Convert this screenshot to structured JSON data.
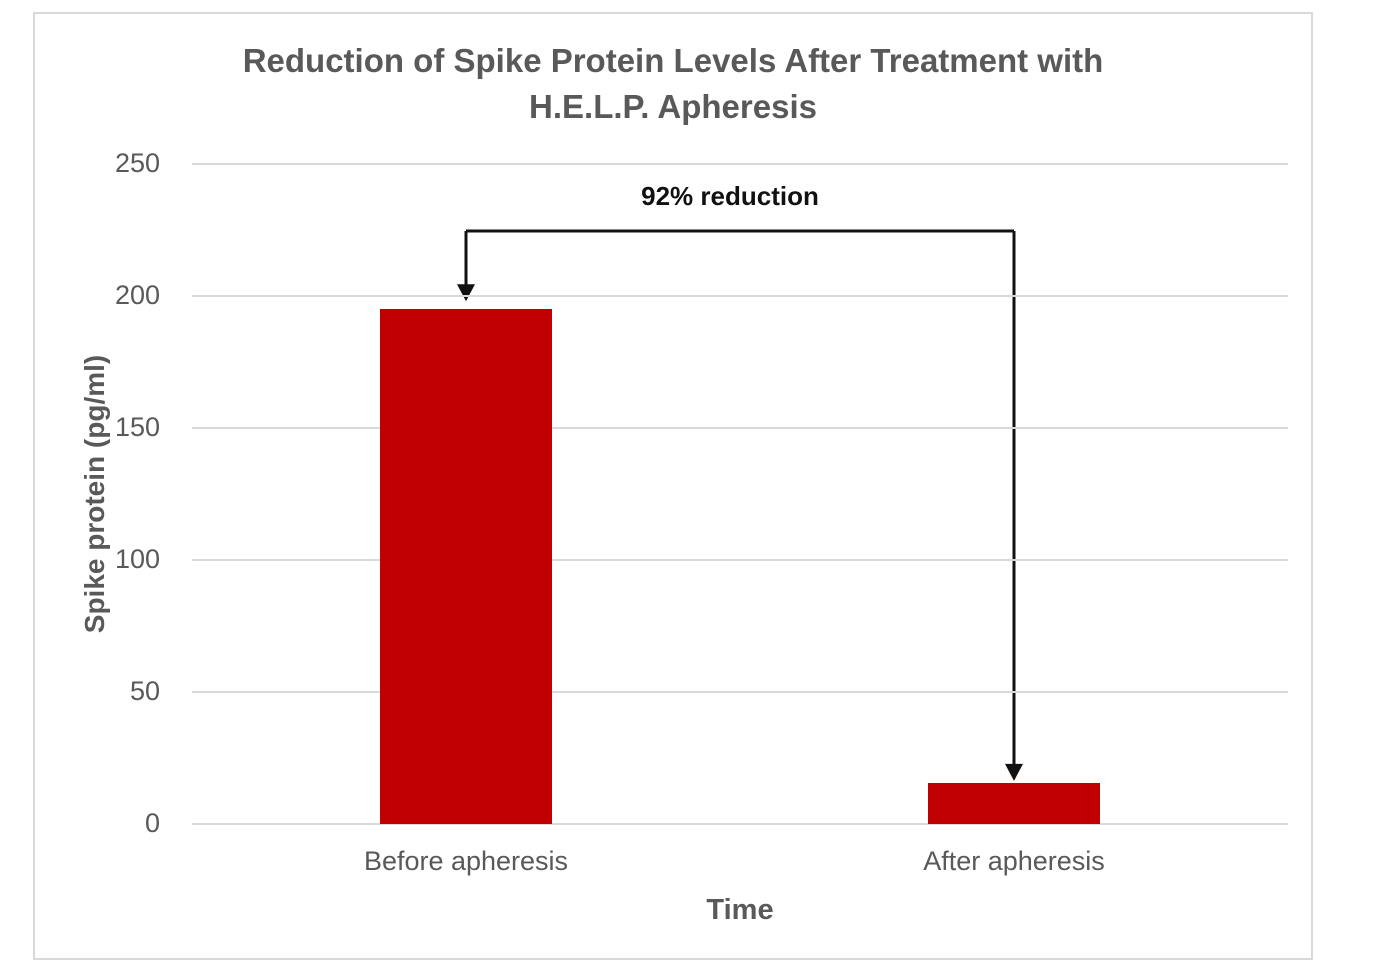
{
  "chart_data": {
    "type": "bar",
    "title": "Reduction of Spike Protein Levels After Treatment with\nH.E.L.P. Apheresis",
    "categories": [
      "Before apheresis",
      "After apheresis"
    ],
    "values": [
      195,
      15.6
    ],
    "xlabel": "Time",
    "ylabel": "Spike protein (pg/ml)",
    "ylim": [
      0,
      250
    ],
    "yticks": [
      0,
      50,
      100,
      150,
      200,
      250
    ],
    "grid": true,
    "legend": "none",
    "annotation": {
      "text": "92% reduction",
      "from_category": "Before apheresis",
      "to_category": "After apheresis"
    },
    "style": {
      "bar_color": "#c00000",
      "text_color": "#595959",
      "gridline_color": "#d9d9d9",
      "annotation_color": "#111111",
      "frame_border_color": "#d9d9d9",
      "background_color": "#ffffff"
    }
  }
}
